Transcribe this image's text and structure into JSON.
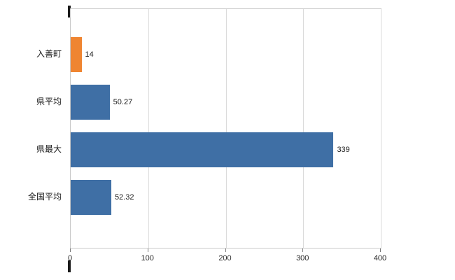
{
  "chart_data": {
    "type": "bar",
    "orientation": "horizontal",
    "title": "",
    "xlabel": "",
    "ylabel": "",
    "categories": [
      "入善町",
      "県平均",
      "県最大",
      "全国平均"
    ],
    "values": [
      14,
      50.27,
      339,
      52.32
    ],
    "value_labels": [
      "14",
      "50.27",
      "339",
      "52.32"
    ],
    "bar_colors": [
      "#ef8531",
      "#3f6fa5",
      "#3f6fa5",
      "#3f6fa5"
    ],
    "x_ticks": [
      0,
      100,
      200,
      300,
      400
    ],
    "x_tick_labels": [
      "0",
      "100",
      "200",
      "300",
      "400"
    ],
    "xlim": [
      0,
      400
    ],
    "grid": "vertical",
    "legend": "none"
  },
  "colors": {
    "orange_bar": "#ef8531",
    "blue_bar": "#3f6fa5",
    "gridline": "#dcdcdc",
    "plot_border": "#c9c9c9",
    "axis_tick": "#7a7a7a",
    "text": "#1a1a1a"
  }
}
